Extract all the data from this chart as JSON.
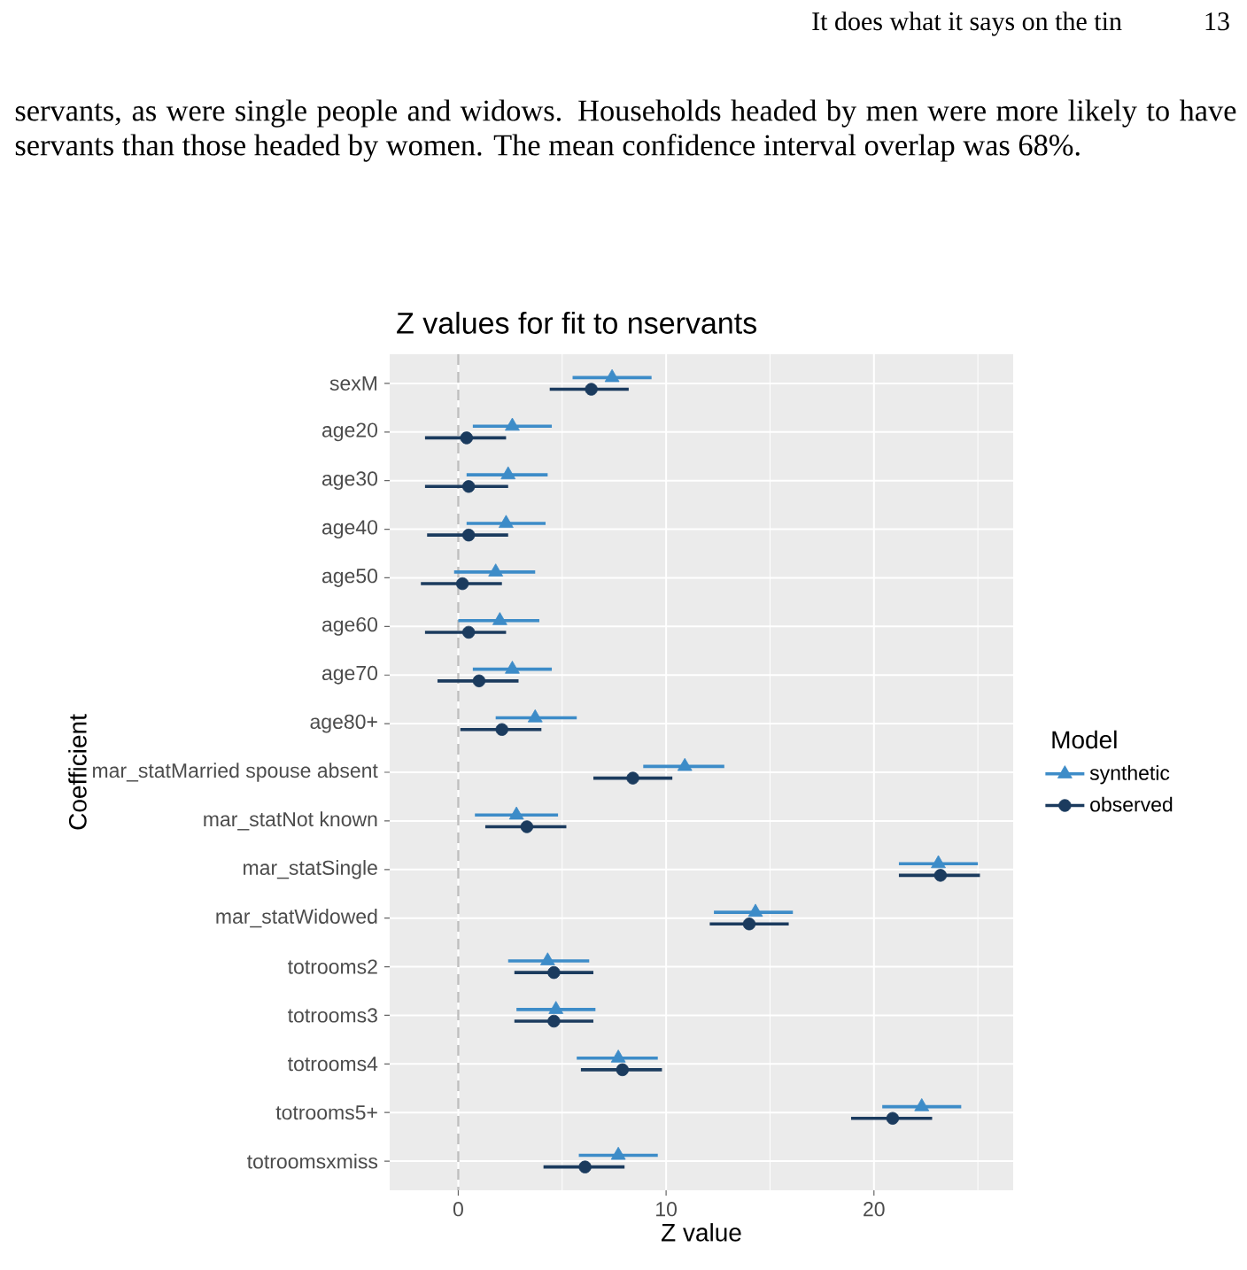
{
  "chart_data": {
    "type": "scatter",
    "orientation": "horizontal",
    "title": "Z values for fit to nservants",
    "xlabel": "Z value",
    "ylabel": "Coefficient",
    "legend_title": "Model",
    "categories": [
      "sexM",
      "age20",
      "age30",
      "age40",
      "age50",
      "age60",
      "age70",
      "age80+",
      "mar_statMarried spouse absent",
      "mar_statNot known",
      "mar_statSingle",
      "mar_statWidowed",
      "totrooms2",
      "totrooms3",
      "totrooms4",
      "totrooms5+",
      "totroomsxmiss"
    ],
    "series": [
      {
        "name": "synthetic",
        "color": "#3d8cc8",
        "marker": "triangle",
        "values": [
          7.4,
          2.6,
          2.4,
          2.3,
          1.8,
          2.0,
          2.6,
          3.7,
          10.9,
          2.8,
          23.1,
          14.3,
          4.3,
          4.7,
          7.7,
          22.3,
          7.7
        ],
        "errors": [
          [
            5.5,
            9.3
          ],
          [
            0.7,
            4.5
          ],
          [
            0.4,
            4.3
          ],
          [
            0.4,
            4.2
          ],
          [
            -0.2,
            3.7
          ],
          [
            0.0,
            3.9
          ],
          [
            0.7,
            4.5
          ],
          [
            1.8,
            5.7
          ],
          [
            8.9,
            12.8
          ],
          [
            0.8,
            4.8
          ],
          [
            21.2,
            25.0
          ],
          [
            12.3,
            16.1
          ],
          [
            2.4,
            6.3
          ],
          [
            2.8,
            6.6
          ],
          [
            5.7,
            9.6
          ],
          [
            20.4,
            24.2
          ],
          [
            5.8,
            9.6
          ]
        ]
      },
      {
        "name": "observed",
        "color": "#1b3b5e",
        "marker": "circle",
        "values": [
          6.4,
          0.4,
          0.5,
          0.5,
          0.2,
          0.5,
          1.0,
          2.1,
          8.4,
          3.3,
          23.2,
          14.0,
          4.6,
          4.6,
          7.9,
          20.9,
          6.1
        ],
        "errors": [
          [
            4.4,
            8.2
          ],
          [
            -1.6,
            2.3
          ],
          [
            -1.6,
            2.4
          ],
          [
            -1.5,
            2.4
          ],
          [
            -1.8,
            2.1
          ],
          [
            -1.6,
            2.3
          ],
          [
            -1.0,
            2.9
          ],
          [
            0.1,
            4.0
          ],
          [
            6.5,
            10.3
          ],
          [
            1.3,
            5.2
          ],
          [
            21.2,
            25.1
          ],
          [
            12.1,
            15.9
          ],
          [
            2.7,
            6.5
          ],
          [
            2.7,
            6.5
          ],
          [
            5.9,
            9.8
          ],
          [
            18.9,
            22.8
          ],
          [
            4.1,
            8.0
          ]
        ]
      }
    ],
    "xlim": [
      -3.3,
      26.7
    ],
    "xticks": [
      0,
      10,
      20
    ],
    "ref_lines": [
      {
        "axis": "x",
        "value": 0,
        "color": "#bebebe",
        "line_style": "dashed"
      }
    ],
    "grid": true,
    "legend": "right",
    "annotations": [
      "It does what it says on the tin",
      "13",
      "servants, as were single people and widows. Households headed by men were more likely to have servants than those headed by women. The mean confidence interval overlap was 68%."
    ]
  }
}
